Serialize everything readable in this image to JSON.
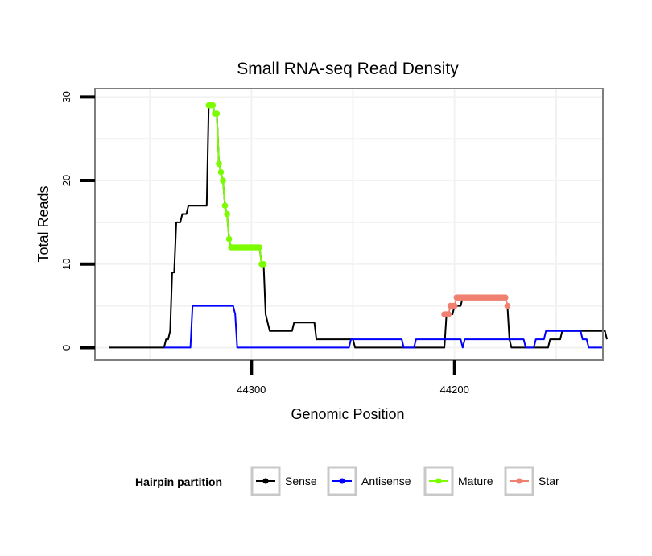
{
  "chart_data": {
    "type": "line",
    "title": "Small RNA-seq Read Density",
    "xlabel": "Genomic Position",
    "ylabel": "Total Reads",
    "x_reversed": true,
    "xlim": [
      44377,
      44127
    ],
    "ylim": [
      -1.5,
      31
    ],
    "x_ticks": [
      {
        "value": 44300,
        "label": "44300"
      },
      {
        "value": 44200,
        "label": "44200"
      }
    ],
    "y_ticks": [
      {
        "value": 0,
        "label": "0"
      },
      {
        "value": 10,
        "label": "10"
      },
      {
        "value": 20,
        "label": "20"
      },
      {
        "value": 30,
        "label": "30"
      }
    ],
    "legend": {
      "title": "Hairpin partition",
      "position": "bottom",
      "entries": [
        "Sense",
        "Antisense",
        "Mature",
        "Star"
      ]
    },
    "series": [
      {
        "name": "Sense",
        "color": "#000000",
        "marker": false,
        "points": [
          [
            44370,
            0
          ],
          [
            44343,
            0
          ],
          [
            44342,
            1
          ],
          [
            44341,
            1
          ],
          [
            44340,
            2
          ],
          [
            44339,
            9
          ],
          [
            44338,
            9
          ],
          [
            44337,
            15
          ],
          [
            44335,
            15
          ],
          [
            44334,
            16
          ],
          [
            44332,
            16
          ],
          [
            44331,
            17
          ],
          [
            44322,
            17
          ],
          [
            44321,
            29
          ],
          [
            44319,
            29
          ],
          [
            44318,
            28
          ],
          [
            44317,
            28
          ],
          [
            44316,
            22
          ],
          [
            44315,
            21
          ],
          [
            44314,
            20
          ],
          [
            44313,
            17
          ],
          [
            44312,
            16
          ],
          [
            44311,
            13
          ],
          [
            44310,
            12
          ],
          [
            44296,
            12
          ],
          [
            44295,
            10
          ],
          [
            44294,
            10
          ],
          [
            44293,
            4
          ],
          [
            44291,
            2
          ],
          [
            44280,
            2
          ],
          [
            44279,
            3
          ],
          [
            44269,
            3
          ],
          [
            44268,
            1
          ],
          [
            44250,
            1
          ],
          [
            44249,
            0
          ],
          [
            44205,
            0
          ],
          [
            44204,
            4
          ],
          [
            44201,
            4
          ],
          [
            44200,
            5
          ],
          [
            44197,
            5
          ],
          [
            44196,
            6
          ],
          [
            44175,
            6
          ],
          [
            44174,
            5
          ],
          [
            44173,
            1
          ],
          [
            44172,
            0
          ],
          [
            44154,
            0
          ],
          [
            44153,
            1
          ],
          [
            44148,
            1
          ],
          [
            44147,
            2
          ],
          [
            44126,
            2
          ],
          [
            44125,
            1
          ]
        ]
      },
      {
        "name": "Antisense",
        "color": "#0000ff",
        "marker": false,
        "points": [
          [
            44343,
            0
          ],
          [
            44330,
            0
          ],
          [
            44329,
            5
          ],
          [
            44309,
            5
          ],
          [
            44308,
            4
          ],
          [
            44307,
            0
          ],
          [
            44252,
            0
          ],
          [
            44251,
            1
          ],
          [
            44226,
            1
          ],
          [
            44225,
            0
          ],
          [
            44220,
            0
          ],
          [
            44219,
            1
          ],
          [
            44197,
            1
          ],
          [
            44196,
            0
          ],
          [
            44195,
            1
          ],
          [
            44166,
            1
          ],
          [
            44165,
            0
          ],
          [
            44161,
            0
          ],
          [
            44160,
            1
          ],
          [
            44156,
            1
          ],
          [
            44155,
            2
          ],
          [
            44138,
            2
          ],
          [
            44137,
            1
          ],
          [
            44135,
            1
          ],
          [
            44134,
            0
          ],
          [
            44127,
            0
          ]
        ]
      },
      {
        "name": "Mature",
        "color": "#7cfc00",
        "marker": true,
        "points": [
          [
            44321,
            29
          ],
          [
            44320,
            29
          ],
          [
            44319,
            29
          ],
          [
            44318,
            28
          ],
          [
            44317,
            28
          ],
          [
            44316,
            22
          ],
          [
            44315,
            21
          ],
          [
            44314,
            20
          ],
          [
            44313,
            17
          ],
          [
            44312,
            16
          ],
          [
            44311,
            13
          ],
          [
            44310,
            12
          ],
          [
            44309,
            12
          ],
          [
            44308,
            12
          ],
          [
            44307,
            12
          ],
          [
            44306,
            12
          ],
          [
            44305,
            12
          ],
          [
            44304,
            12
          ],
          [
            44303,
            12
          ],
          [
            44302,
            12
          ],
          [
            44301,
            12
          ],
          [
            44300,
            12
          ],
          [
            44299,
            12
          ],
          [
            44298,
            12
          ],
          [
            44297,
            12
          ],
          [
            44296,
            12
          ],
          [
            44295,
            10
          ],
          [
            44294,
            10
          ]
        ]
      },
      {
        "name": "Star",
        "color": "#f08070",
        "marker": true,
        "points": [
          [
            44205,
            4
          ],
          [
            44204,
            4
          ],
          [
            44203,
            4
          ],
          [
            44202,
            5
          ],
          [
            44201,
            5
          ],
          [
            44200,
            5
          ],
          [
            44199,
            6
          ],
          [
            44198,
            6
          ],
          [
            44197,
            6
          ],
          [
            44196,
            6
          ],
          [
            44195,
            6
          ],
          [
            44194,
            6
          ],
          [
            44193,
            6
          ],
          [
            44192,
            6
          ],
          [
            44191,
            6
          ],
          [
            44190,
            6
          ],
          [
            44189,
            6
          ],
          [
            44188,
            6
          ],
          [
            44187,
            6
          ],
          [
            44186,
            6
          ],
          [
            44185,
            6
          ],
          [
            44184,
            6
          ],
          [
            44183,
            6
          ],
          [
            44182,
            6
          ],
          [
            44181,
            6
          ],
          [
            44180,
            6
          ],
          [
            44179,
            6
          ],
          [
            44178,
            6
          ],
          [
            44177,
            6
          ],
          [
            44176,
            6
          ],
          [
            44175,
            6
          ],
          [
            44174,
            5
          ]
        ]
      }
    ]
  }
}
